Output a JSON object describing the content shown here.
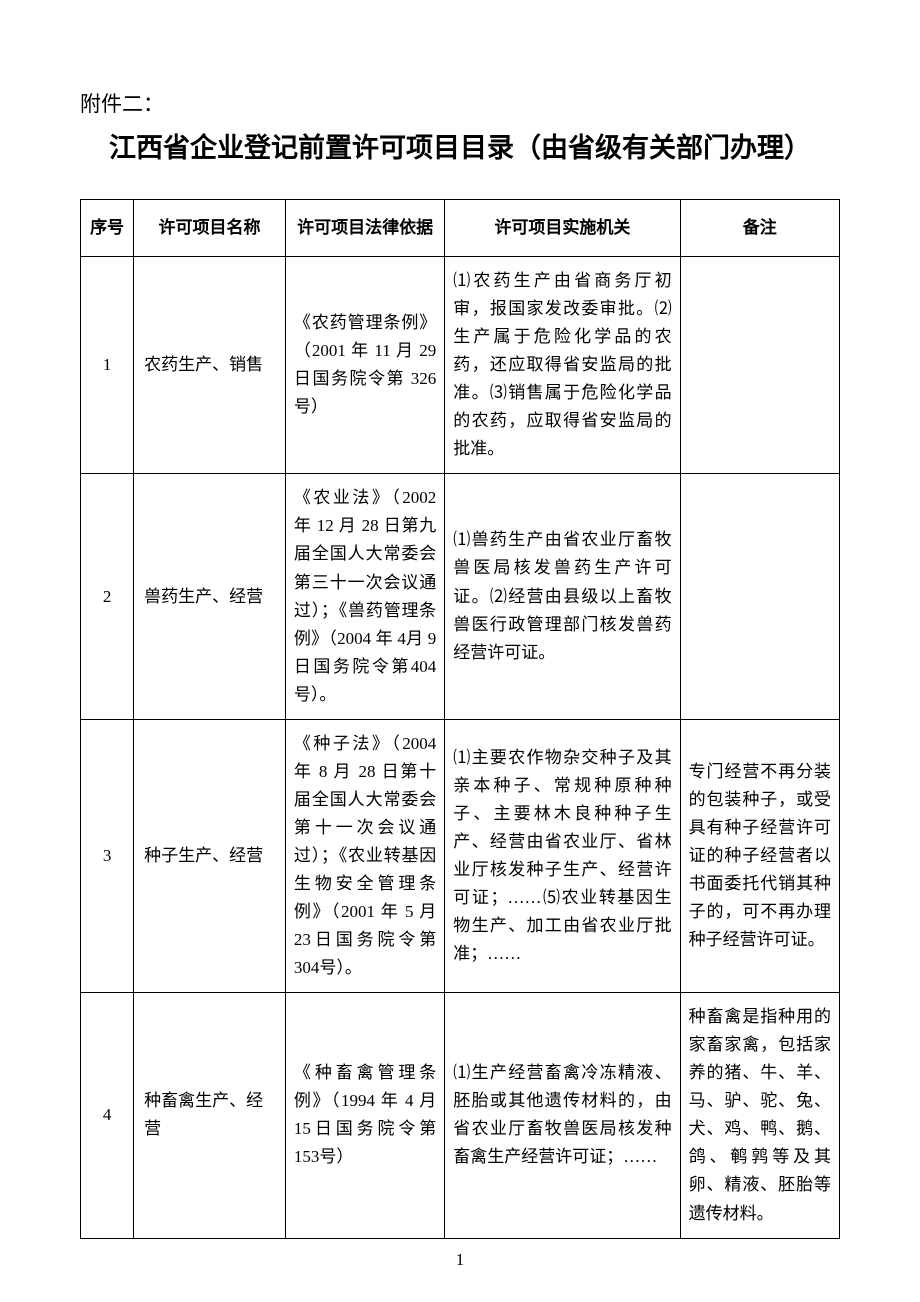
{
  "attachment_label": "附件二：",
  "title": "江西省企业登记前置许可项目目录（由省级有关部门办理）",
  "headers": {
    "index": "序号",
    "project_name": "许可项目名称",
    "legal_basis": "许可项目法律依据",
    "authority": "许可项目实施机关",
    "note": "备注"
  },
  "rows": [
    {
      "index": "1",
      "project_name": "农药生产、销售",
      "legal_basis": "《农药管理条例》（2001 年 11 月 29日国务院令第 326号）",
      "authority": "⑴农药生产由省商务厅初审，报国家发改委审批。⑵生产属于危险化学品的农药，还应取得省安监局的批准。⑶销售属于危险化学品的农药，应取得省安监局的批准。",
      "note": ""
    },
    {
      "index": "2",
      "project_name": "兽药生产、经营",
      "legal_basis": "《农业法》（2002年 12 月 28 日第九届全国人大常委会第三十一次会议通过）；《兽药管理条例》（2004 年 4月 9 日国务院令第404 号）。",
      "authority": "⑴兽药生产由省农业厅畜牧兽医局核发兽药生产许可证。⑵经营由县级以上畜牧兽医行政管理部门核发兽药经营许可证。",
      "note": ""
    },
    {
      "index": "3",
      "project_name": "种子生产、经营",
      "legal_basis": "《种子法》（2004年 8 月 28 日第十届全国人大常委会第十一次会议通过）；《农业转基因生物安全管理条例》（2001 年 5 月 23日国务院令第 304号）。",
      "authority": "⑴主要农作物杂交种子及其亲本种子、常规种原种种子、主要林木良种种子生产、经营由省农业厅、省林业厅核发种子生产、经营许可证；……⑸农业转基因生物生产、加工由省农业厅批准；……",
      "note": "专门经营不再分装的包装种子，或受具有种子经营许可证的种子经营者以书面委托代销其种子的，可不再办理种子经营许可证。"
    },
    {
      "index": "4",
      "project_name": "种畜禽生产、经营",
      "legal_basis": "《种畜禽管理条例》（1994 年 4 月 15日国务院令第 153号）",
      "authority": "⑴生产经营畜禽冷冻精液、胚胎或其他遗传材料的，由省农业厅畜牧兽医局核发种畜禽生产经营许可证；……",
      "note": "种畜禽是指种用的家畜家禽，包括家养的猪、牛、羊、马、驴、驼、兔、犬、鸡、鸭、鹅、鸽、鹌鹑等及其卵、精液、胚胎等遗传材料。"
    }
  ],
  "page_number": "1"
}
